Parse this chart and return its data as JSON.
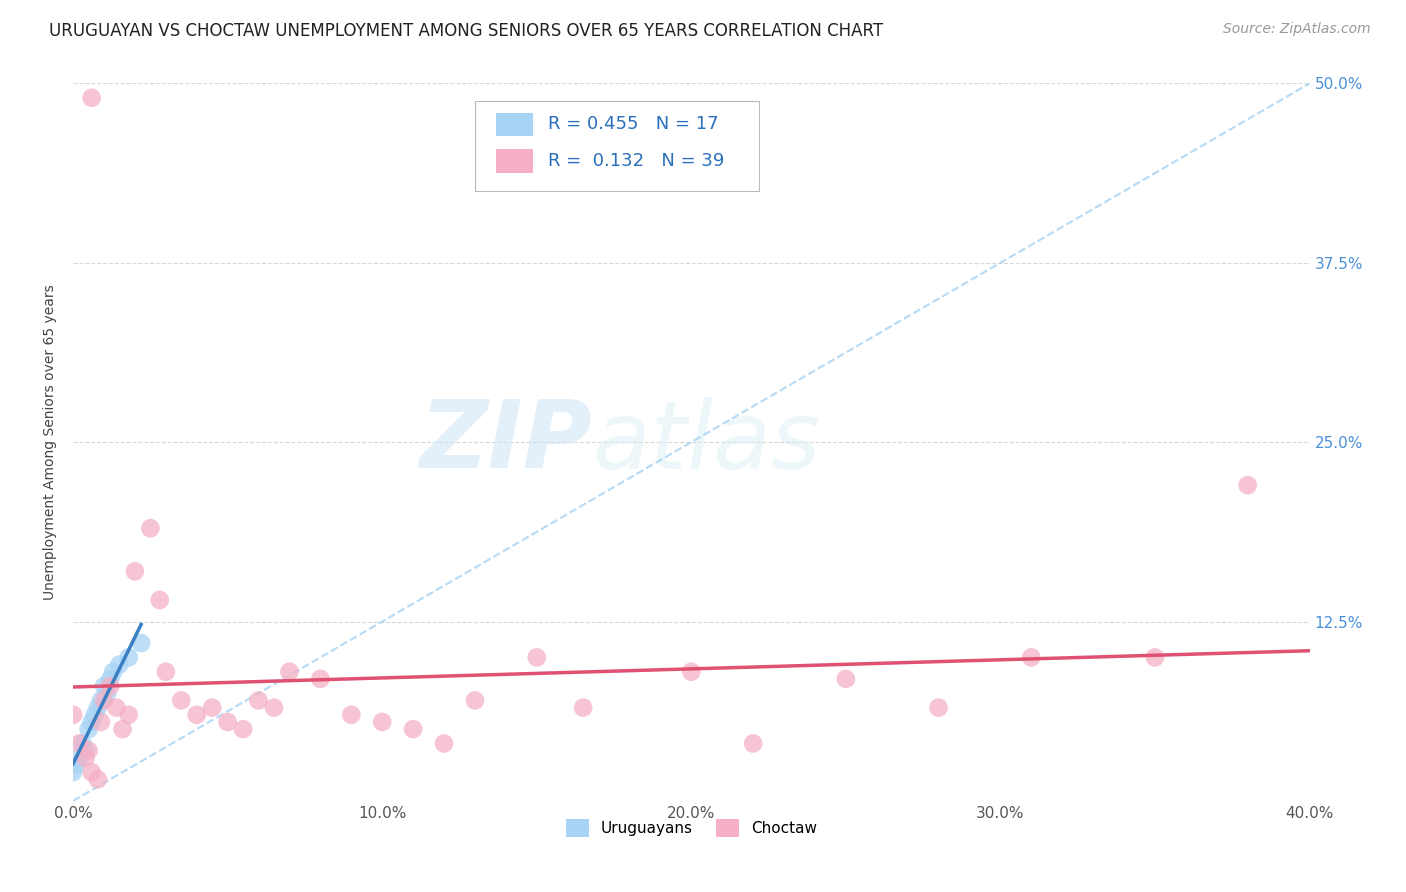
{
  "title": "URUGUAYAN VS CHOCTAW UNEMPLOYMENT AMONG SENIORS OVER 65 YEARS CORRELATION CHART",
  "source": "Source: ZipAtlas.com",
  "ylabel": "Unemployment Among Seniors over 65 years",
  "xlim": [
    0.0,
    0.4
  ],
  "ylim": [
    0.0,
    0.5
  ],
  "xticks": [
    0.0,
    0.1,
    0.2,
    0.3,
    0.4
  ],
  "yticks": [
    0.0,
    0.125,
    0.25,
    0.375,
    0.5
  ],
  "xtick_labels": [
    "0.0%",
    "10.0%",
    "20.0%",
    "30.0%",
    "40.0%"
  ],
  "ytick_labels": [
    "",
    "12.5%",
    "25.0%",
    "37.5%",
    "50.0%"
  ],
  "background_color": "#ffffff",
  "grid_color": "#d8d8d8",
  "watermark_zip": "ZIP",
  "watermark_atlas": "atlas",
  "legend_text1": "R = 0.455   N = 17",
  "legend_text2": "R =  0.132   N = 39",
  "uruguayan_color": "#a8d4f5",
  "choctaw_color": "#f5b0c5",
  "trend_uruguayan_color": "#3a7fc1",
  "trend_choctaw_color": "#e05070",
  "trend_dashed_color": "#a8d4f5",
  "uruguayan_x": [
    0.0,
    0.001,
    0.002,
    0.003,
    0.004,
    0.005,
    0.006,
    0.007,
    0.008,
    0.009,
    0.01,
    0.011,
    0.012,
    0.013,
    0.015,
    0.018,
    0.022
  ],
  "uruguayan_y": [
    0.02,
    0.025,
    0.03,
    0.04,
    0.035,
    0.05,
    0.055,
    0.06,
    0.065,
    0.07,
    0.08,
    0.075,
    0.085,
    0.09,
    0.095,
    0.1,
    0.11
  ],
  "choctaw_x": [
    0.0,
    0.002,
    0.004,
    0.005,
    0.006,
    0.008,
    0.009,
    0.01,
    0.012,
    0.014,
    0.016,
    0.018,
    0.02,
    0.025,
    0.028,
    0.03,
    0.035,
    0.04,
    0.045,
    0.05,
    0.055,
    0.06,
    0.065,
    0.07,
    0.08,
    0.09,
    0.1,
    0.11,
    0.12,
    0.13,
    0.15,
    0.165,
    0.2,
    0.22,
    0.25,
    0.28,
    0.31,
    0.35,
    0.38
  ],
  "choctaw_y": [
    0.06,
    0.04,
    0.03,
    0.035,
    0.02,
    0.015,
    0.055,
    0.07,
    0.08,
    0.065,
    0.05,
    0.06,
    0.16,
    0.19,
    0.14,
    0.09,
    0.07,
    0.06,
    0.065,
    0.055,
    0.05,
    0.07,
    0.065,
    0.09,
    0.085,
    0.06,
    0.055,
    0.05,
    0.04,
    0.07,
    0.1,
    0.065,
    0.09,
    0.04,
    0.085,
    0.065,
    0.1,
    0.1,
    0.22
  ],
  "choctaw_outlier_x": [
    0.006
  ],
  "choctaw_outlier_y": [
    0.49
  ],
  "marker_size": 180,
  "title_fontsize": 12,
  "axis_label_fontsize": 10,
  "tick_fontsize": 11,
  "legend_fontsize": 13,
  "source_fontsize": 10
}
